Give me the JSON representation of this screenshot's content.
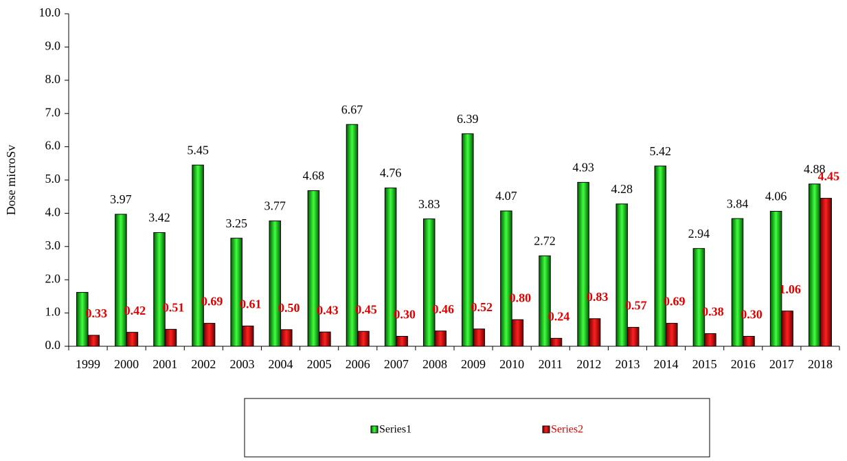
{
  "chart_data": {
    "type": "bar",
    "y_label": "Dose microSv",
    "categories": [
      "1999",
      "2000",
      "2001",
      "2002",
      "2003",
      "2004",
      "2005",
      "2006",
      "2007",
      "2008",
      "2009",
      "2010",
      "2011",
      "2012",
      "2013",
      "2014",
      "2015",
      "2016",
      "2017",
      "2018"
    ],
    "series": [
      {
        "name": "Series1",
        "color": "#00b000",
        "values": [
          1.62,
          3.97,
          3.42,
          5.45,
          3.25,
          3.77,
          4.68,
          6.67,
          4.76,
          3.83,
          6.39,
          4.07,
          2.72,
          4.93,
          4.28,
          5.42,
          2.94,
          3.84,
          4.06,
          4.88
        ],
        "value_labels": [
          null,
          "3.97",
          "3.42",
          "5.45",
          "3.25",
          "3.77",
          "4.68",
          "6.67",
          "4.76",
          "3.83",
          "6.39",
          "4.07",
          "2.72",
          "4.93",
          "4.28",
          "5.42",
          "2.94",
          "3.84",
          "4.06",
          "4.88"
        ]
      },
      {
        "name": "Series2",
        "color": "#e00000",
        "values": [
          0.33,
          0.42,
          0.51,
          0.69,
          0.61,
          0.5,
          0.43,
          0.45,
          0.3,
          0.46,
          0.52,
          0.8,
          0.24,
          0.83,
          0.57,
          0.69,
          0.38,
          0.3,
          1.06,
          4.45
        ],
        "value_labels": [
          "0.33",
          "0.42",
          "0.51",
          "0.69",
          "0.61",
          "0.50",
          "0.43",
          "0.45",
          "0.30",
          "0.46",
          "0.52",
          "0.80",
          "0.24",
          "0.83",
          "0.57",
          "0.69",
          "0.38",
          "0.30",
          "1.06",
          "4.45"
        ]
      }
    ],
    "ylim": [
      0,
      10
    ],
    "yticks": [
      {
        "value": 0,
        "label": "0.0"
      },
      {
        "value": 1,
        "label": "1.0"
      },
      {
        "value": 2,
        "label": "2.0"
      },
      {
        "value": 3,
        "label": "3.0"
      },
      {
        "value": 4,
        "label": "4.0"
      },
      {
        "value": 5,
        "label": "5.0"
      },
      {
        "value": 6,
        "label": "6.0"
      },
      {
        "value": 7,
        "label": "7.0"
      },
      {
        "value": 8,
        "label": "8.0"
      },
      {
        "value": 9,
        "label": "9.0"
      },
      {
        "value": 10,
        "label": "10.0"
      }
    ],
    "grid": false
  }
}
